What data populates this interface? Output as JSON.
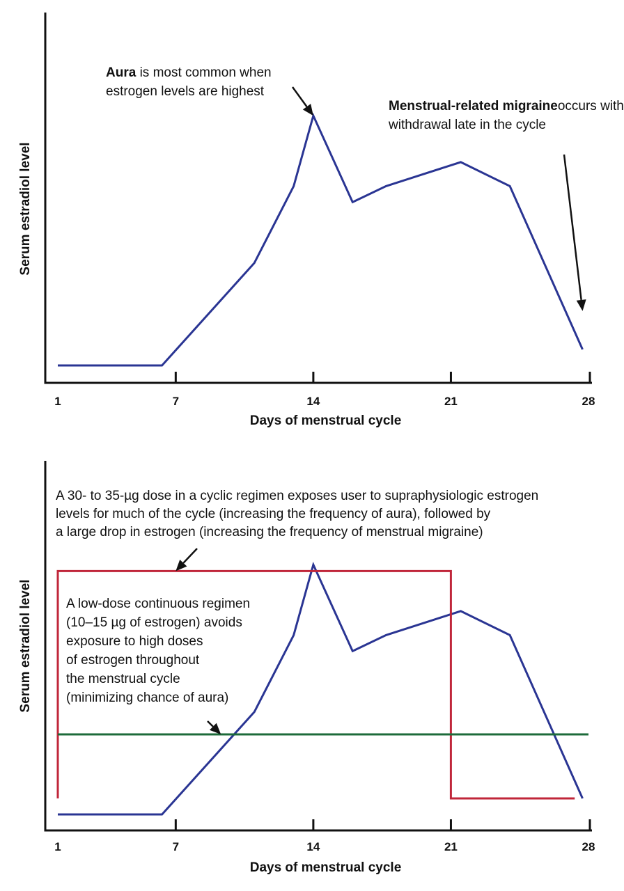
{
  "chart_data": [
    {
      "type": "line",
      "xlabel": "Days of menstrual cycle",
      "ylabel": "Serum estradiol level",
      "xlim": [
        1,
        28
      ],
      "ylim": [
        0,
        100
      ],
      "tick_labels": [
        "1",
        "7",
        "14",
        "21",
        "28"
      ],
      "ticks": [
        1,
        7,
        14,
        21,
        28
      ],
      "series": [
        {
          "color": "#2a3593",
          "x": [
            1,
            6.3,
            11,
            13,
            14,
            16,
            17.7,
            21.5,
            24,
            27.7
          ],
          "y": [
            5,
            5,
            37,
            61,
            83,
            56,
            61,
            68.5,
            61,
            10
          ]
        }
      ],
      "annotations": [
        {
          "bold": "Aura",
          "lines": [
            " is most common when",
            "estrogen levels are highest"
          ],
          "points_to": [
            14,
            83
          ]
        },
        {
          "bold": "Menstrual-related migraine",
          "lines": [
            "occurs with estrogen",
            "withdrawal late in the cycle"
          ],
          "points_to": [
            27.7,
            22
          ]
        }
      ]
    },
    {
      "type": "line",
      "xlabel": "Days of menstrual cycle",
      "ylabel": "Serum estradiol level",
      "xlim": [
        1,
        28
      ],
      "ylim": [
        0,
        100
      ],
      "tick_labels": [
        "1",
        "7",
        "14",
        "21",
        "28"
      ],
      "ticks": [
        1,
        7,
        14,
        21,
        28
      ],
      "series": [
        {
          "color": "#2a3593",
          "x": [
            1,
            6.3,
            11,
            13,
            14,
            16,
            17.7,
            21.5,
            24,
            27.7
          ],
          "y": [
            5,
            5,
            37,
            61,
            83,
            56,
            61,
            68.5,
            61,
            10
          ]
        },
        {
          "color": "#c0263a",
          "x": [
            1,
            1,
            21,
            21,
            27.3
          ],
          "y": [
            10,
            81,
            81,
            10,
            10
          ]
        },
        {
          "color": "#1d6b3a",
          "x": [
            1,
            28
          ],
          "y": [
            30,
            30
          ]
        }
      ],
      "annotations": [
        {
          "lines": [
            "A 30- to 35-µg dose in a cyclic regimen exposes user to supraphysiologic estrogen",
            "levels for much of the cycle (increasing the frequency of aura), followed by",
            "a large drop in estrogen (increasing the frequency of menstrual migraine)"
          ],
          "points_to": [
            7,
            81
          ]
        },
        {
          "lines": [
            "A low-dose continuous regimen",
            "(10–15 µg of estrogen) avoids",
            "exposure to high doses",
            "of estrogen throughout",
            "the menstrual cycle",
            "(minimizing chance of aura)"
          ],
          "points_to": [
            9.3,
            30
          ]
        }
      ]
    }
  ]
}
